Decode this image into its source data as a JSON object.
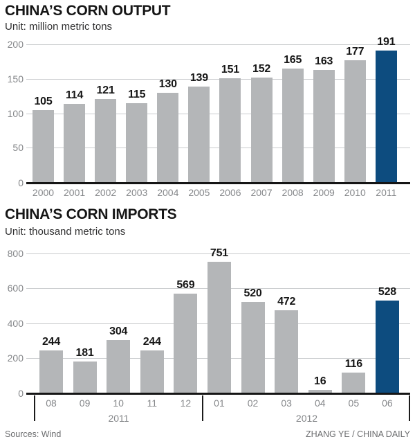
{
  "chart_data": [
    {
      "type": "bar",
      "title": "CHINA’S CORN OUTPUT",
      "unit_label": "Unit: million metric tons",
      "categories": [
        "2000",
        "2001",
        "2002",
        "2003",
        "2004",
        "2005",
        "2006",
        "2007",
        "2008",
        "2009",
        "2010",
        "2011"
      ],
      "values": [
        105,
        114,
        121,
        115,
        130,
        139,
        151,
        152,
        165,
        163,
        177,
        191
      ],
      "yticks": [
        200,
        150,
        100,
        50,
        0
      ],
      "ylim": [
        0,
        200
      ],
      "grid": "horizontal",
      "legend": "none",
      "highlight_index": 11
    },
    {
      "type": "bar",
      "title": "CHINA’S CORN IMPORTS",
      "unit_label": "Unit: thousand metric tons",
      "categories": [
        "08",
        "09",
        "10",
        "11",
        "12",
        "01",
        "02",
        "03",
        "04",
        "05",
        "06"
      ],
      "values": [
        244,
        181,
        304,
        244,
        569,
        751,
        520,
        472,
        16,
        116,
        528
      ],
      "yticks": [
        800,
        600,
        400,
        200,
        0
      ],
      "ylim": [
        0,
        800
      ],
      "grid": "horizontal",
      "legend": "none",
      "highlight_index": 10,
      "groups": [
        {
          "label": "2011",
          "count": 5
        },
        {
          "label": "2012",
          "count": 6
        }
      ]
    }
  ],
  "footer": {
    "source": "Sources: Wind",
    "credit": "ZHANG YE / CHINA DAILY"
  },
  "colors": {
    "bar_gray": "#b4b6b8",
    "bar_highlight": "#0d4c7f",
    "gridline": "#c9cbcd",
    "axis_text": "#85878a",
    "value_text": "#161616",
    "title_text": "#161616",
    "baseline": "#151515",
    "footer_text": "#6b6c6e"
  }
}
